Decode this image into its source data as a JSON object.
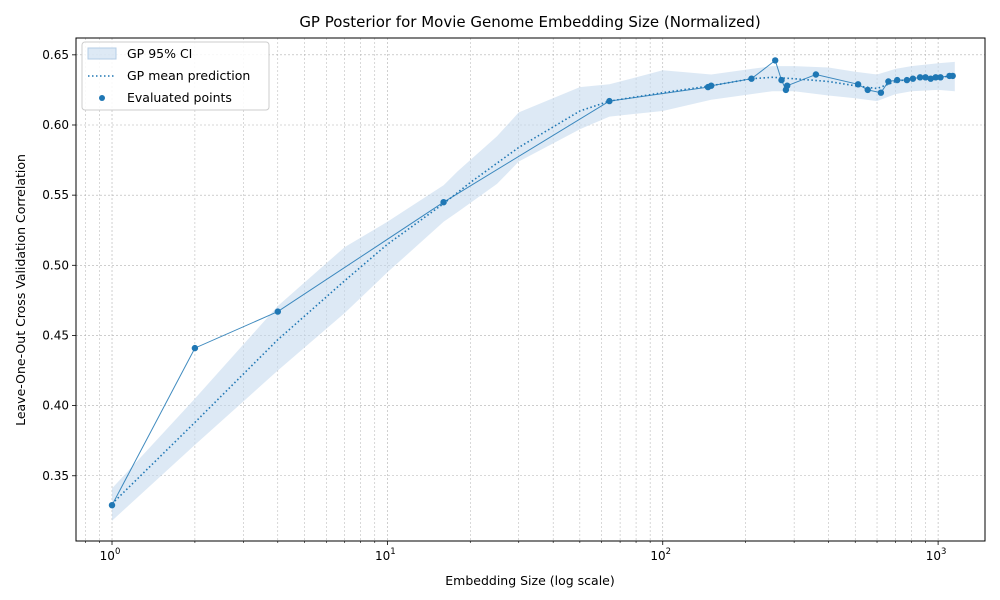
{
  "chart_data": {
    "type": "line",
    "title": "GP Posterior for Movie Genome Embedding Size (Normalized)",
    "xlabel": "Embedding Size (log scale)",
    "ylabel": "Leave-One-Out Cross Validation Correlation",
    "xscale": "log",
    "xlim": [
      0.74,
      1480
    ],
    "ylim": [
      0.3035,
      0.662
    ],
    "x_ticks": [
      {
        "value": 1,
        "base": "10",
        "exp": "0"
      },
      {
        "value": 10,
        "base": "10",
        "exp": "1"
      },
      {
        "value": 100,
        "base": "10",
        "exp": "2"
      },
      {
        "value": 1000,
        "base": "10",
        "exp": "3"
      }
    ],
    "y_ticks": [
      {
        "value": 0.35,
        "label": "0.35"
      },
      {
        "value": 0.4,
        "label": "0.40"
      },
      {
        "value": 0.45,
        "label": "0.45"
      },
      {
        "value": 0.5,
        "label": "0.50"
      },
      {
        "value": 0.55,
        "label": "0.55"
      },
      {
        "value": 0.6,
        "label": "0.60"
      },
      {
        "value": 0.65,
        "label": "0.65"
      }
    ],
    "grid": true,
    "legend_position": "top-left",
    "colors": {
      "points": "#1f77b4",
      "band": "#c6dbef",
      "mean": "#1f77b4"
    },
    "series": [
      {
        "name": "GP 95% CI",
        "kind": "band",
        "x": [
          1,
          2,
          4,
          7,
          10,
          16,
          18,
          25,
          30,
          50,
          64,
          100,
          150,
          210,
          250,
          300,
          400,
          500,
          600,
          700,
          800,
          1000,
          1150
        ],
        "lower": [
          0.318,
          0.372,
          0.425,
          0.466,
          0.495,
          0.531,
          0.538,
          0.558,
          0.574,
          0.597,
          0.606,
          0.61,
          0.618,
          0.622,
          0.624,
          0.624,
          0.621,
          0.619,
          0.617,
          0.622,
          0.624,
          0.625,
          0.624
        ],
        "upper": [
          0.341,
          0.405,
          0.471,
          0.513,
          0.531,
          0.557,
          0.567,
          0.592,
          0.609,
          0.627,
          0.629,
          0.639,
          0.636,
          0.64,
          0.642,
          0.642,
          0.641,
          0.638,
          0.636,
          0.64,
          0.642,
          0.644,
          0.645
        ]
      },
      {
        "name": "GP mean prediction",
        "kind": "line",
        "x": [
          1,
          2,
          4,
          7,
          10,
          16,
          20,
          30,
          50,
          64,
          100,
          150,
          210,
          250,
          300,
          400,
          500,
          600,
          700,
          800,
          1000,
          1150
        ],
        "y": [
          0.33,
          0.388,
          0.447,
          0.489,
          0.515,
          0.544,
          0.559,
          0.584,
          0.61,
          0.617,
          0.623,
          0.628,
          0.633,
          0.634,
          0.633,
          0.631,
          0.628,
          0.626,
          0.631,
          0.633,
          0.634,
          0.635
        ]
      },
      {
        "name": "Evaluated points",
        "kind": "scatter",
        "x": [
          1,
          2,
          4,
          16,
          64,
          146,
          150,
          210,
          256,
          270,
          280,
          283,
          360,
          512,
          555,
          620,
          660,
          710,
          770,
          810,
          860,
          900,
          940,
          980,
          1020,
          1100,
          1130
        ],
        "y": [
          0.329,
          0.441,
          0.467,
          0.545,
          0.617,
          0.627,
          0.628,
          0.633,
          0.646,
          0.632,
          0.625,
          0.628,
          0.636,
          0.629,
          0.625,
          0.623,
          0.631,
          0.632,
          0.632,
          0.633,
          0.634,
          0.634,
          0.633,
          0.634,
          0.634,
          0.635,
          0.635
        ]
      }
    ]
  }
}
